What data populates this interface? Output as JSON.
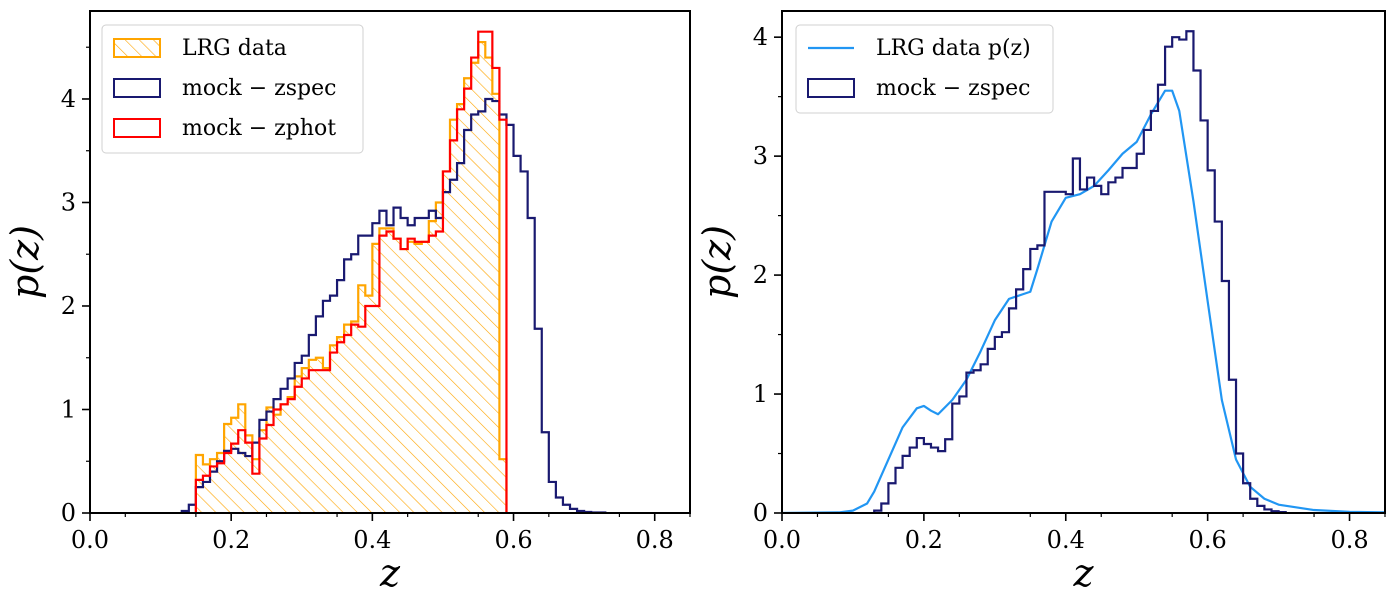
{
  "colors": {
    "lrg_data": "#FFA500",
    "mock_zspec": "#191970",
    "mock_zphot": "#FF0000",
    "lrg_pz_line": "#2196F3"
  },
  "chart_data": [
    {
      "type": "histogram",
      "xlabel": "z",
      "ylabel": "p(z)",
      "xlim": [
        0.0,
        0.85
      ],
      "ylim": [
        0,
        4.85
      ],
      "xticks": [
        0.0,
        0.2,
        0.4,
        0.6,
        0.8
      ],
      "xtick_labels": [
        "0.0",
        "0.2",
        "0.4",
        "0.6",
        "0.8"
      ],
      "yticks": [
        0,
        1,
        2,
        3,
        4
      ],
      "ytick_labels": [
        "0",
        "1",
        "2",
        "3",
        "4"
      ],
      "legend_position": "top-left",
      "bins": {
        "start": 0.1,
        "width": 0.01
      },
      "series": [
        {
          "name": "LRG data",
          "style": "hatched-step",
          "color_key": "lrg_data",
          "start": 0.15,
          "values": [
            0.56,
            0.47,
            0.52,
            0.58,
            0.86,
            0.92,
            1.05,
            0.75,
            0.52,
            0.8,
            1.02,
            0.95,
            1.05,
            1.12,
            1.32,
            1.4,
            1.48,
            1.5,
            1.4,
            1.62,
            1.7,
            1.82,
            1.85,
            2.2,
            2.1,
            2.6,
            2.75,
            2.75,
            2.65,
            2.55,
            2.62,
            2.6,
            2.62,
            2.82,
            3.0,
            3.3,
            3.8,
            3.95,
            4.2,
            4.35,
            4.55,
            4.4,
            4.05,
            0.52
          ]
        },
        {
          "name": "mock − zspec",
          "style": "step",
          "color_key": "mock_zspec",
          "start": 0.13,
          "values": [
            0.02,
            0.08,
            0.25,
            0.3,
            0.4,
            0.5,
            0.6,
            0.62,
            0.58,
            0.55,
            0.68,
            0.9,
            0.98,
            1.1,
            1.2,
            1.3,
            1.45,
            1.52,
            1.72,
            1.9,
            2.05,
            2.1,
            2.25,
            2.45,
            2.5,
            2.68,
            2.68,
            2.8,
            2.92,
            2.78,
            2.95,
            2.85,
            2.78,
            2.85,
            2.85,
            2.92,
            2.85,
            3.1,
            3.22,
            3.38,
            3.7,
            3.85,
            3.88,
            4.0,
            3.98,
            3.85,
            3.75,
            3.45,
            3.3,
            2.85,
            1.78,
            0.78,
            0.3,
            0.15,
            0.08,
            0.04,
            0.02,
            0.01,
            0.005,
            0.005
          ]
        },
        {
          "name": "mock − zphot",
          "style": "step",
          "color_key": "mock_zphot",
          "start": 0.15,
          "values": [
            0.32,
            0.36,
            0.45,
            0.48,
            0.58,
            0.67,
            0.8,
            0.68,
            0.38,
            0.72,
            0.85,
            1.0,
            1.05,
            1.1,
            1.22,
            1.3,
            1.38,
            1.38,
            1.38,
            1.55,
            1.65,
            1.72,
            1.82,
            1.8,
            2.0,
            2.0,
            2.68,
            2.72,
            2.65,
            2.55,
            2.65,
            2.62,
            2.62,
            2.68,
            2.72,
            3.3,
            3.6,
            3.9,
            4.1,
            4.4,
            4.65,
            4.65,
            4.3,
            3.8
          ]
        }
      ]
    },
    {
      "type": "histogram",
      "xlabel": "z",
      "ylabel": "p(z)",
      "xlim": [
        0.0,
        0.85
      ],
      "ylim": [
        0,
        4.22
      ],
      "xticks": [
        0.0,
        0.2,
        0.4,
        0.6,
        0.8
      ],
      "xtick_labels": [
        "0.0",
        "0.2",
        "0.4",
        "0.6",
        "0.8"
      ],
      "yticks": [
        0,
        1,
        2,
        3,
        4
      ],
      "ytick_labels": [
        "0",
        "1",
        "2",
        "3",
        "4"
      ],
      "legend_position": "top-left",
      "bins": {
        "start": 0.1,
        "width": 0.01
      },
      "series": [
        {
          "name": "LRG data p(z)",
          "style": "line",
          "color_key": "lrg_pz_line",
          "x": [
            0.0,
            0.08,
            0.1,
            0.12,
            0.13,
            0.15,
            0.17,
            0.19,
            0.2,
            0.21,
            0.22,
            0.24,
            0.26,
            0.28,
            0.3,
            0.32,
            0.34,
            0.35,
            0.36,
            0.38,
            0.4,
            0.42,
            0.44,
            0.46,
            0.48,
            0.5,
            0.52,
            0.54,
            0.55,
            0.56,
            0.58,
            0.6,
            0.62,
            0.64,
            0.66,
            0.68,
            0.7,
            0.75,
            0.8,
            0.85
          ],
          "y": [
            0.0,
            0.005,
            0.02,
            0.08,
            0.18,
            0.45,
            0.72,
            0.88,
            0.9,
            0.86,
            0.83,
            0.95,
            1.12,
            1.36,
            1.62,
            1.8,
            1.84,
            1.86,
            2.05,
            2.45,
            2.65,
            2.68,
            2.75,
            2.88,
            3.02,
            3.12,
            3.35,
            3.55,
            3.55,
            3.38,
            2.62,
            1.78,
            0.95,
            0.45,
            0.22,
            0.12,
            0.07,
            0.025,
            0.01,
            0.005
          ]
        },
        {
          "name": "mock − zspec",
          "style": "step",
          "color_key": "mock_zspec",
          "start": 0.13,
          "values": [
            0.02,
            0.08,
            0.25,
            0.38,
            0.48,
            0.55,
            0.63,
            0.58,
            0.55,
            0.52,
            0.62,
            0.92,
            0.98,
            1.18,
            1.2,
            1.25,
            1.38,
            1.48,
            1.52,
            1.72,
            1.88,
            2.05,
            2.22,
            2.25,
            2.7,
            2.7,
            2.7,
            2.68,
            2.98,
            2.72,
            2.82,
            2.75,
            2.68,
            2.78,
            2.82,
            2.9,
            2.9,
            3.02,
            3.22,
            3.38,
            3.6,
            3.92,
            4.0,
            3.98,
            4.05,
            3.72,
            3.3,
            2.88,
            2.45,
            1.95,
            1.12,
            0.5,
            0.25,
            0.12,
            0.06,
            0.03,
            0.015,
            0.008
          ]
        }
      ]
    }
  ]
}
